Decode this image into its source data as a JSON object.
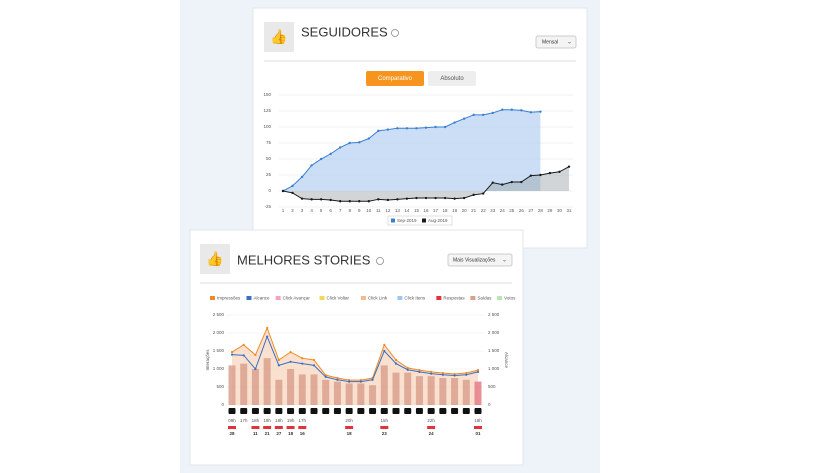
{
  "chart_data": [
    {
      "type": "line",
      "title": "SEGUIDORES",
      "dropdown": "Mensal",
      "buttons": [
        "Comparativo",
        "Absoluto"
      ],
      "x": [
        1,
        2,
        3,
        4,
        5,
        6,
        7,
        8,
        9,
        10,
        11,
        12,
        13,
        14,
        15,
        16,
        17,
        18,
        19,
        20,
        21,
        22,
        23,
        24,
        25,
        26,
        27,
        28,
        29,
        30,
        31
      ],
      "xlim": [
        1,
        31
      ],
      "xticks": [
        1,
        2,
        3,
        4,
        5,
        6,
        7,
        8,
        9,
        10,
        11,
        12,
        13,
        14,
        15,
        16,
        17,
        18,
        19,
        20,
        21,
        22,
        23,
        24,
        25,
        26,
        27,
        28,
        29,
        30,
        31
      ],
      "ylim": [
        -25,
        150
      ],
      "yticks": [
        -25,
        0,
        25,
        50,
        75,
        100,
        125,
        150
      ],
      "grid": true,
      "series": [
        {
          "name": "Sep-2019",
          "color": "#3b7fd1",
          "values": [
            0,
            8,
            22,
            40,
            50,
            58,
            68,
            75,
            76,
            82,
            94,
            96,
            98,
            98,
            98,
            99,
            100,
            100,
            107,
            113,
            119,
            119,
            122,
            127,
            127,
            126,
            123,
            124,
            null,
            null,
            null
          ]
        },
        {
          "name": "Aug-2019",
          "color": "#1a1a1a",
          "values": [
            0,
            -3,
            -12,
            -13,
            -13,
            -14,
            -16,
            -16,
            -16,
            -16,
            -13,
            -14,
            -13,
            -12,
            -11,
            -11,
            -11,
            -11,
            -12,
            -11,
            -6,
            -4,
            13,
            10,
            14,
            14,
            24,
            25,
            28,
            30,
            38
          ]
        }
      ]
    },
    {
      "type": "combo",
      "title": "MELHORES STORIES",
      "dropdown": "Mais Visualizações",
      "ylabel": "Interações",
      "y2label": "Alcance",
      "categories": [
        "09h",
        "17h",
        "18h",
        "19h",
        "18h",
        "19h",
        "17h",
        null,
        null,
        null,
        "20h",
        null,
        null,
        "15h",
        null,
        null,
        null,
        "22h",
        null,
        null,
        null,
        "18h"
      ],
      "dates": [
        "28",
        null,
        "11",
        "21",
        "27",
        "18",
        "16",
        null,
        null,
        null,
        "18",
        null,
        null,
        "23",
        null,
        null,
        null,
        "24",
        null,
        null,
        null,
        "01"
      ],
      "ylim": [
        0,
        2500
      ],
      "yticks": [
        0,
        {
          "value": 500,
          "label": "500"
        },
        {
          "value": 1000,
          "label": "1 000"
        },
        {
          "value": 1500,
          "label": "1 500"
        },
        {
          "value": 2000,
          "label": "2 000"
        },
        {
          "value": 2500,
          "label": "2 500"
        }
      ],
      "y2lim": [
        0,
        2500
      ],
      "y2ticks": [
        0,
        {
          "value": 500,
          "label": "500"
        },
        {
          "value": 1000,
          "label": "1 000"
        },
        {
          "value": 1500,
          "label": "1 500"
        },
        {
          "value": 2000,
          "label": "2 000"
        },
        {
          "value": 2500,
          "label": "2 500"
        }
      ],
      "series": [
        {
          "name": "Impressões",
          "color": "#f08a24",
          "values": [
            1470,
            1670,
            1390,
            2140,
            1250,
            1470,
            1300,
            1250,
            830,
            750,
            690,
            690,
            750,
            1670,
            1250,
            1030,
            970,
            920,
            890,
            860,
            890,
            970
          ]
        },
        {
          "name": "Alcance",
          "color": "#3a6fc4",
          "axis": "y2",
          "values": [
            1400,
            1380,
            1000,
            1900,
            1100,
            1200,
            1150,
            1100,
            780,
            700,
            650,
            650,
            700,
            1500,
            1150,
            980,
            920,
            870,
            840,
            820,
            840,
            920
          ]
        },
        {
          "name": "Click Avançar",
          "color": "#f4a6b8"
        },
        {
          "name": "Click Voltar",
          "color": "#f5d55a"
        },
        {
          "name": "Click Link",
          "color": "#f6b98a"
        },
        {
          "name": "Click Itens",
          "color": "#9cc8ee"
        },
        {
          "name": "Respostas",
          "color": "#e2333c"
        },
        {
          "name": "Saídas",
          "color": "#d9a08e",
          "values": [
            1100,
            1150,
            1000,
            1300,
            700,
            1000,
            850,
            850,
            700,
            650,
            600,
            600,
            550,
            1100,
            900,
            900,
            800,
            800,
            750,
            750,
            700,
            650
          ]
        },
        {
          "name": "Votos",
          "color": "#b8e6b0"
        }
      ]
    }
  ]
}
